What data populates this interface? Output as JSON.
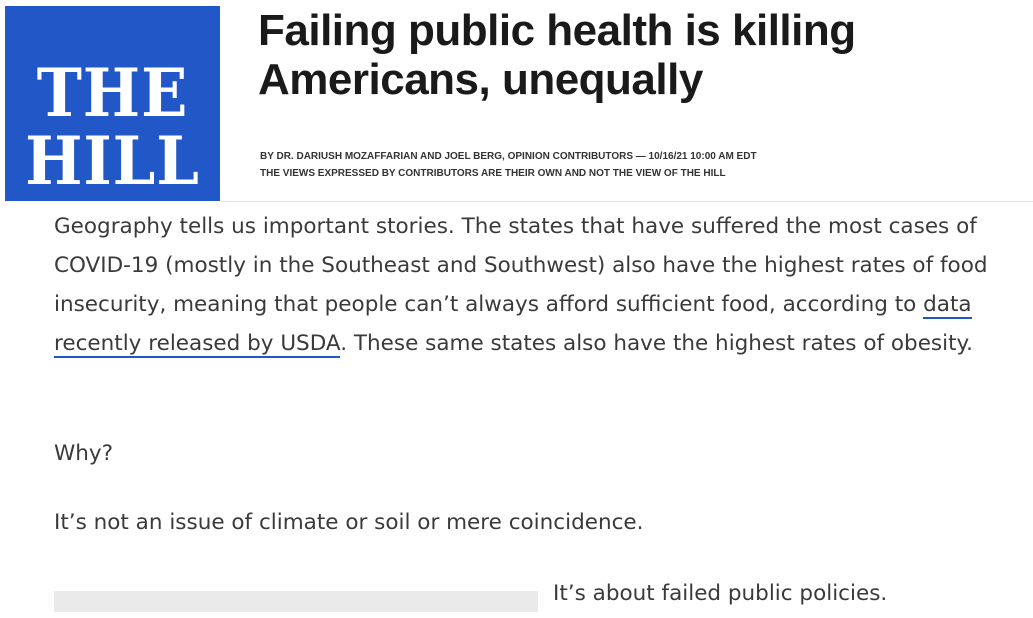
{
  "logo": {
    "line1": "THE",
    "line2": "HILL"
  },
  "article": {
    "headline": "Failing public health is killing Americans, unequally",
    "byline": "BY DR. DARIUSH MOZAFFARIAN AND JOEL BERG, OPINION CONTRIBUTORS — 10/16/21 10:00 AM EDT",
    "disclaimer": "THE VIEWS EXPRESSED BY CONTRIBUTORS ARE THEIR OWN AND NOT THE VIEW OF THE HILL",
    "paragraph1": {
      "before_link": "Geography tells us important stories. The states that have suffered the most cases of COVID-19 (mostly in the Southeast and Southwest) also have the highest rates of food insecurity, meaning that people can’t always afford sufficient food, according to ",
      "link_text": "data recently released by USDA",
      "after_link": ". These same states also have the highest rates of obesity."
    },
    "paragraph2": "Why?",
    "paragraph3": "It’s not an issue of climate or soil or mere coincidence.",
    "paragraph4": "It’s about failed public policies."
  },
  "colors": {
    "brand_blue": "#2157c7",
    "text": "#3a3a3a",
    "headline": "#1a1a1a"
  }
}
